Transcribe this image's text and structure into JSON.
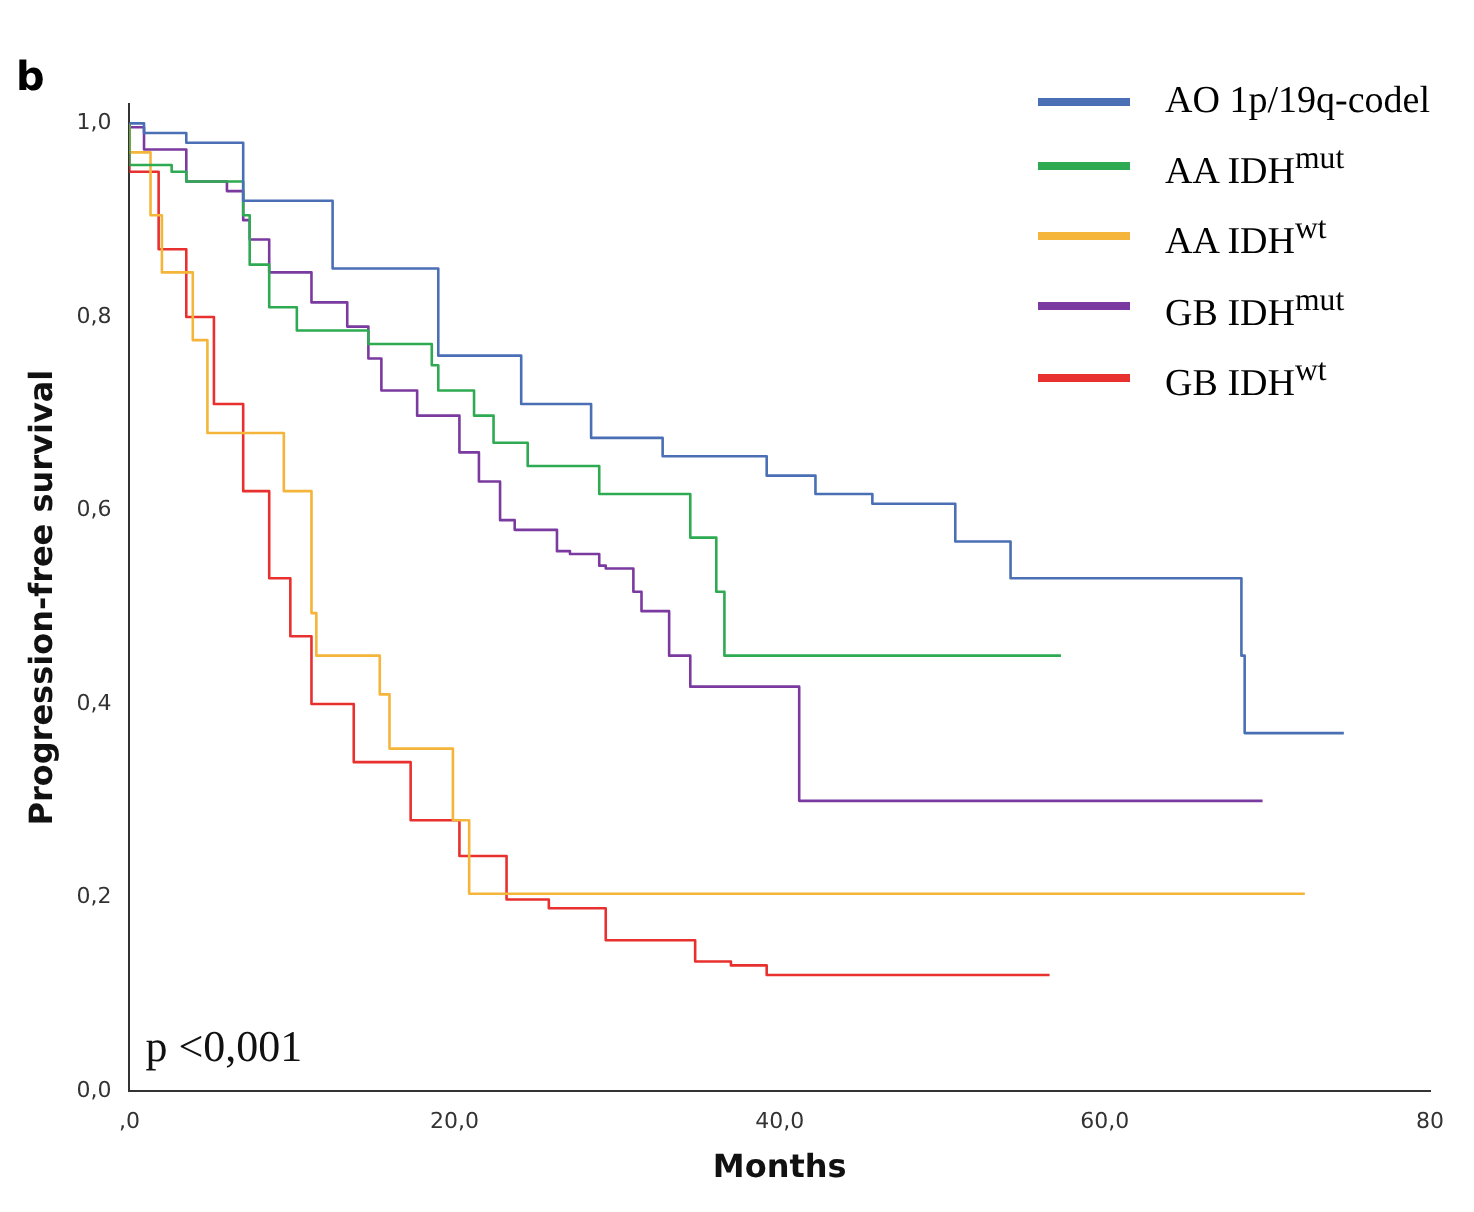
{
  "chart_data": {
    "type": "step",
    "title": "b",
    "xlabel": "Months",
    "ylabel": "Progression-free survival",
    "xlim": [
      0,
      80
    ],
    "xticks": [
      {
        "value": 0,
        "label": ",0"
      },
      {
        "value": 20,
        "label": "20,0"
      },
      {
        "value": 40,
        "label": "40,0"
      },
      {
        "value": 60,
        "label": "60,0"
      },
      {
        "value": 80,
        "label": "80"
      }
    ],
    "ylim": [
      0,
      1.02
    ],
    "yticks": [
      {
        "value": 0,
        "label": "0,0"
      },
      {
        "value": 0.2,
        "label": "0,2"
      },
      {
        "value": 0.4,
        "label": "0,4"
      },
      {
        "value": 0.6,
        "label": "0,6"
      },
      {
        "value": 0.8,
        "label": "0,8"
      },
      {
        "value": 1,
        "label": "1,0"
      }
    ],
    "grid": false,
    "legend": "top right",
    "marker": "none",
    "line_style": "solid",
    "annotations": [
      "p <0,001"
    ],
    "series": [
      {
        "name": "AO 1p/19q-codel",
        "color": "#4a6fb5",
        "x": [
          0,
          0.9,
          3.5,
          7,
          12.5,
          19,
          24.1,
          28.4,
          32.8,
          39.2,
          42.2,
          45.7,
          50.8,
          54.2,
          57.7,
          68.4,
          68.6,
          69,
          74.7
        ],
        "values": [
          1,
          1,
          0.99,
          0.98,
          0.92,
          0.85,
          0.76,
          0.71,
          0.675,
          0.656,
          0.636,
          0.617,
          0.607,
          0.568,
          0.53,
          0.53,
          0.45,
          0.37,
          0.37
        ]
      },
      {
        "name": "AA IDH$^{mut}$",
        "color": "#2eaa52",
        "x": [
          0,
          2.6,
          3.5,
          7,
          7.4,
          8.6,
          10.3,
          11.2,
          14.7,
          15.1,
          18.6,
          19,
          21.2,
          22.4,
          22.8,
          24.5,
          25,
          28.9,
          29.3,
          34.5,
          34.7,
          36.1,
          36.6,
          37.2,
          57.3
        ],
        "values": [
          1,
          0.957,
          0.95,
          0.94,
          0.905,
          0.854,
          0.81,
          0.786,
          0.786,
          0.772,
          0.772,
          0.75,
          0.724,
          0.698,
          0.67,
          0.67,
          0.646,
          0.646,
          0.617,
          0.617,
          0.572,
          0.572,
          0.516,
          0.45,
          0.45
        ]
      },
      {
        "name": "AA IDH$^{wt}$",
        "color": "#f5b53a",
        "x": [
          0,
          1.3,
          2,
          2.4,
          3.9,
          4.8,
          8.6,
          9.5,
          9.7,
          11.2,
          11.5,
          15.4,
          16,
          19.9,
          20.9,
          26.1,
          72.3
        ],
        "values": [
          1,
          0.97,
          0.905,
          0.846,
          0.846,
          0.776,
          0.68,
          0.68,
          0.62,
          0.62,
          0.494,
          0.45,
          0.41,
          0.354,
          0.28,
          0.204,
          0.204
        ]
      },
      {
        "name": "GB IDH$^{mut}$",
        "color": "#7a3aa0",
        "x": [
          0,
          0.9,
          3.5,
          6,
          7,
          7.4,
          8.6,
          11.2,
          13.4,
          14.7,
          15.5,
          17.7,
          20.3,
          21.5,
          22.8,
          23.7,
          26.3,
          27.1,
          28.9,
          29.3,
          31,
          31.5,
          33.2,
          34.5,
          41.2,
          50.2,
          69.7
        ],
        "values": [
          1,
          0.996,
          0.973,
          0.94,
          0.93,
          0.9,
          0.88,
          0.846,
          0.815,
          0.79,
          0.757,
          0.724,
          0.698,
          0.66,
          0.63,
          0.59,
          0.58,
          0.558,
          0.555,
          0.543,
          0.54,
          0.516,
          0.496,
          0.45,
          0.418,
          0.3,
          0.3
        ]
      },
      {
        "name": "GB IDH$^{wt}$",
        "color": "#e8312f",
        "x": [
          0,
          1.8,
          3.5,
          5.2,
          7,
          8.6,
          9.9,
          11.2,
          13.8,
          17.3,
          20.3,
          23.2,
          25.8,
          29.3,
          31,
          34.8,
          37,
          39.2,
          40.5,
          56.6
        ],
        "values": [
          1,
          0.95,
          0.87,
          0.8,
          0.71,
          0.62,
          0.53,
          0.47,
          0.4,
          0.34,
          0.28,
          0.243,
          0.198,
          0.189,
          0.156,
          0.156,
          0.134,
          0.13,
          0.12,
          0.12
        ]
      }
    ]
  }
}
